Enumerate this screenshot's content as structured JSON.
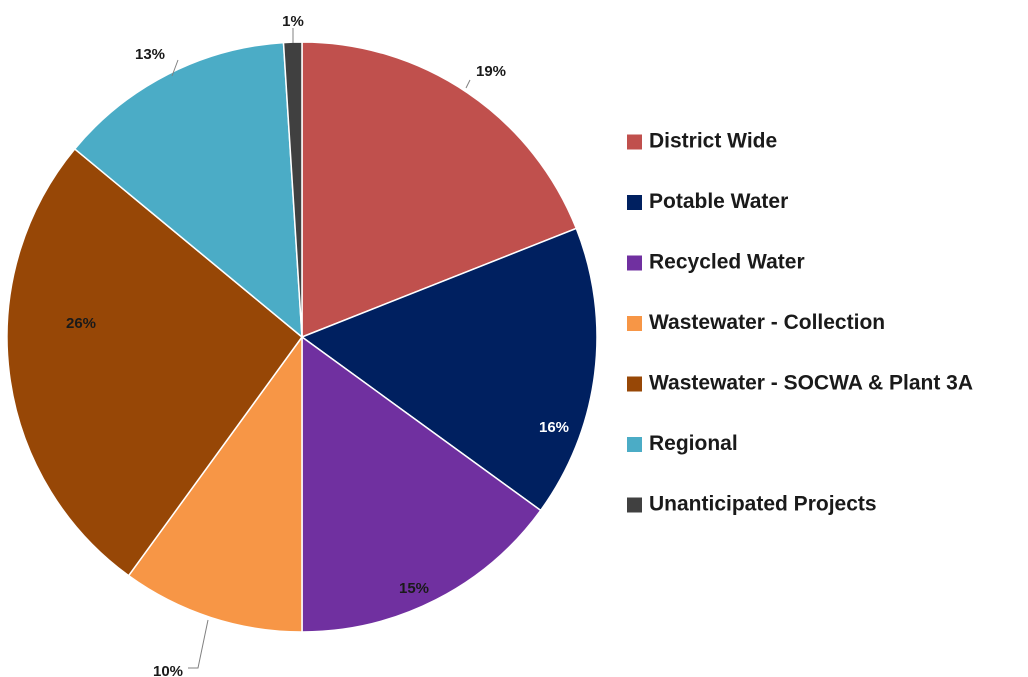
{
  "chart_data": {
    "type": "pie",
    "title": "",
    "slices": [
      {
        "label": "District Wide",
        "value": 19,
        "display": "19%",
        "color": "#C0504D",
        "label_color": "#1a1a1a"
      },
      {
        "label": "Potable Water",
        "value": 16,
        "display": "16%",
        "color": "#002060",
        "label_color": "#ffffff"
      },
      {
        "label": "Recycled Water",
        "value": 15,
        "display": "15%",
        "color": "#7030A0",
        "label_color": "#1a1a1a"
      },
      {
        "label": "Wastewater - Collection",
        "value": 10,
        "display": "10%",
        "color": "#F79646",
        "label_color": "#1a1a1a"
      },
      {
        "label": "Wastewater - SOCWA & Plant 3A",
        "value": 26,
        "display": "26%",
        "color": "#974706",
        "label_color": "#1a1a1a"
      },
      {
        "label": "Regional",
        "value": 13,
        "display": "13%",
        "color": "#4BACC6",
        "label_color": "#1a1a1a"
      },
      {
        "label": "Unanticipated Projects",
        "value": 1,
        "display": "1%",
        "color": "#404040",
        "label_color": "#1a1a1a"
      }
    ],
    "start_angle_deg": 0,
    "direction": "clockwise",
    "legend_position": "right"
  }
}
